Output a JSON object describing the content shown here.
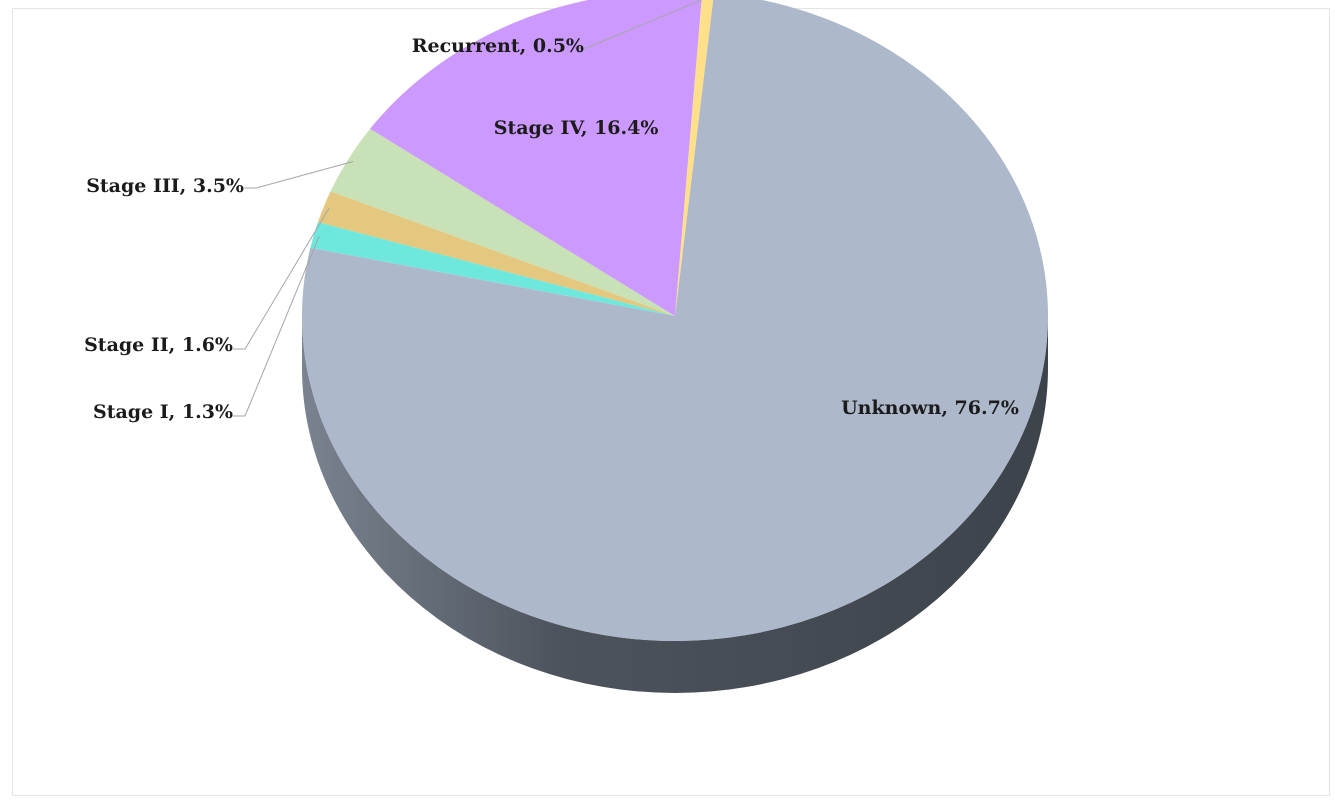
{
  "chart_data": {
    "type": "pie",
    "title": "",
    "style": "3d",
    "slices": [
      {
        "name": "Unknown",
        "value": 76.7,
        "label": "Unknown, 76.7%",
        "color": "#adb8cb"
      },
      {
        "name": "Stage I",
        "value": 1.3,
        "label": "Stage I, 1.3%",
        "color": "#6ee8dd"
      },
      {
        "name": "Stage II",
        "value": 1.6,
        "label": "Stage II, 1.6%",
        "color": "#e4c880"
      },
      {
        "name": "Stage III",
        "value": 3.5,
        "label": "Stage III, 3.5%",
        "color": "#c8e1b6"
      },
      {
        "name": "Stage IV",
        "value": 16.4,
        "label": "Stage IV, 16.4%",
        "color": "#cc99ff"
      },
      {
        "name": "Recurrent",
        "value": 0.5,
        "label": "Recurrent, 0.5%",
        "color": "#ffe08a"
      }
    ],
    "legend": "none",
    "data_labels": "category, percentage"
  }
}
